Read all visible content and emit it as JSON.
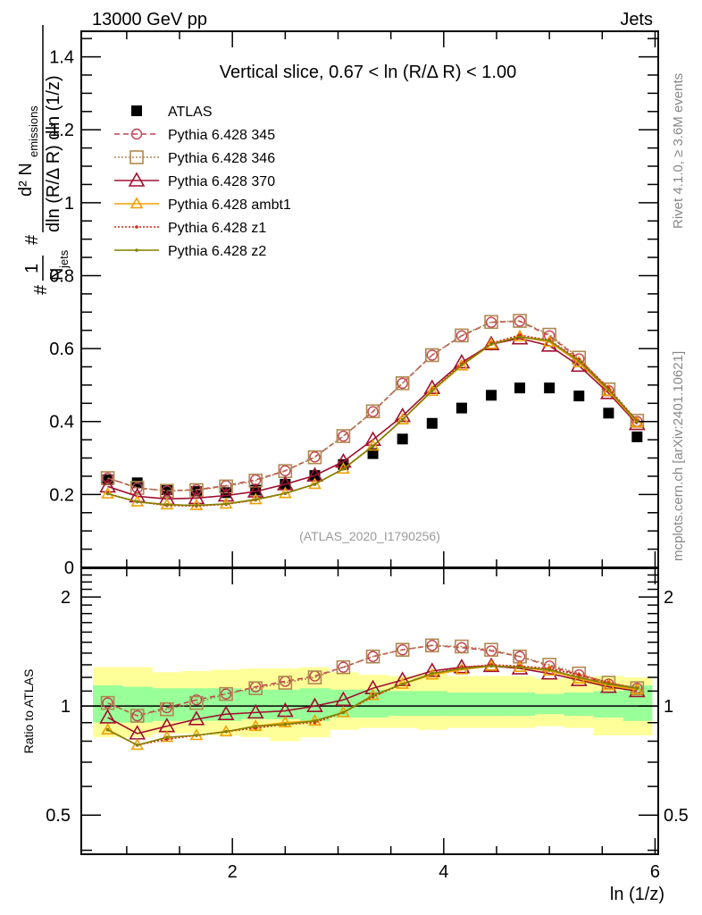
{
  "header": {
    "left": "13000 GeV pp",
    "right": "Jets"
  },
  "side_labels": {
    "rivet": "Rivet 4.1.0, ≥ 3.6M events",
    "mcplots": "mcplots.cern.ch [arXiv:2401.10621]"
  },
  "chart_data": [
    {
      "type": "scatter",
      "title": "Vertical slice, 0.67 < ln (R/Δ R) < 1.00",
      "watermark": "(ATLAS_2020_I1790256)",
      "xlabel": "ln (1/z)",
      "ylabel": "1/N_jets d²N_emissions / dln (R/Δ R) dln (1/z)",
      "ylabel_parts": {
        "num": "d² N",
        "num_sub": "emissions",
        "den": "dln (R/Δ R) dln (1/z)",
        "pre": "1",
        "pre_den": "N",
        "pre_sub": "jets"
      },
      "xlim": [
        0.57,
        6.03
      ],
      "ylim": [
        0,
        1.47
      ],
      "x_ticks": [
        2,
        4,
        6
      ],
      "y_ticks": [
        0,
        0.2,
        0.4,
        0.6,
        0.8,
        1,
        1.2,
        1.4
      ],
      "y_tick_labels": [
        "0",
        "0.2",
        "0.4",
        "0.6",
        "0.8",
        "1",
        "1.2",
        "1.4"
      ],
      "legend_position": "top-left",
      "x": [
        0.82,
        1.1,
        1.38,
        1.66,
        1.94,
        2.22,
        2.5,
        2.78,
        3.05,
        3.33,
        3.61,
        3.89,
        4.17,
        4.45,
        4.72,
        5.0,
        5.28,
        5.56,
        5.83
      ],
      "series": [
        {
          "name": "ATLAS",
          "color": "#000000",
          "marker": "square-filled",
          "line": "none",
          "values": [
            0.24,
            0.232,
            0.213,
            0.208,
            0.205,
            0.212,
            0.228,
            0.252,
            0.282,
            0.312,
            0.352,
            0.395,
            0.437,
            0.472,
            0.492,
            0.492,
            0.47,
            0.423,
            0.358
          ]
        },
        {
          "name": "Pythia 6.428 345",
          "color": "#c04050",
          "marker": "circle-open",
          "line": "dashed",
          "values": [
            0.245,
            0.218,
            0.21,
            0.213,
            0.224,
            0.24,
            0.265,
            0.303,
            0.36,
            0.427,
            0.505,
            0.582,
            0.635,
            0.672,
            0.675,
            0.635,
            0.572,
            0.485,
            0.4
          ]
        },
        {
          "name": "Pythia 6.428 346",
          "color": "#b08850",
          "marker": "square-open",
          "line": "dotted",
          "values": [
            0.245,
            0.218,
            0.21,
            0.212,
            0.222,
            0.238,
            0.264,
            0.302,
            0.36,
            0.428,
            0.505,
            0.582,
            0.636,
            0.673,
            0.676,
            0.638,
            0.575,
            0.488,
            0.402
          ]
        },
        {
          "name": "Pythia 6.428 370",
          "color": "#a01030",
          "marker": "triangle-open",
          "line": "solid",
          "values": [
            0.222,
            0.195,
            0.188,
            0.19,
            0.197,
            0.208,
            0.228,
            0.252,
            0.29,
            0.35,
            0.415,
            0.492,
            0.562,
            0.612,
            0.628,
            0.608,
            0.553,
            0.478,
            0.393
          ]
        },
        {
          "name": "Pythia 6.428 ambt1",
          "color": "#f0a000",
          "marker": "triangle-open-small",
          "line": "solid",
          "values": [
            0.202,
            0.18,
            0.172,
            0.17,
            0.174,
            0.186,
            0.203,
            0.228,
            0.27,
            0.333,
            0.405,
            0.483,
            0.553,
            0.612,
            0.633,
            0.618,
            0.562,
            0.483,
            0.397
          ]
        },
        {
          "name": "Pythia 6.428 z1",
          "color": "#e02010",
          "marker": "dot",
          "line": "dotted",
          "values": [
            0.202,
            0.18,
            0.17,
            0.168,
            0.173,
            0.185,
            0.203,
            0.228,
            0.27,
            0.332,
            0.405,
            0.485,
            0.558,
            0.615,
            0.637,
            0.623,
            0.57,
            0.492,
            0.402
          ]
        },
        {
          "name": "Pythia 6.428 z2",
          "color": "#808000",
          "marker": "dot",
          "line": "solid",
          "values": [
            0.202,
            0.18,
            0.172,
            0.17,
            0.174,
            0.186,
            0.203,
            0.228,
            0.27,
            0.333,
            0.405,
            0.485,
            0.555,
            0.612,
            0.632,
            0.622,
            0.566,
            0.487,
            0.4
          ]
        }
      ]
    },
    {
      "type": "scatter",
      "title": "",
      "ylabel": "Ratio to ATLAS",
      "xlabel": "ln (1/z)",
      "yscale": "log",
      "ylim": [
        0.39,
        2.4
      ],
      "xlim": [
        0.57,
        6.03
      ],
      "y_ticks": [
        0.5,
        1,
        2
      ],
      "y_tick_labels": [
        "0.5",
        "1",
        "2"
      ],
      "x_ticks": [
        2,
        4,
        6
      ],
      "x_tick_labels": [
        "2",
        "4",
        "6"
      ],
      "reference_line": 1,
      "x": [
        0.82,
        1.1,
        1.38,
        1.66,
        1.94,
        2.22,
        2.5,
        2.78,
        3.05,
        3.33,
        3.61,
        3.89,
        4.17,
        4.45,
        4.72,
        5.0,
        5.28,
        5.56,
        5.83
      ],
      "bins": [
        0.68,
        0.96,
        1.24,
        1.52,
        1.8,
        2.08,
        2.36,
        2.64,
        2.92,
        3.19,
        3.47,
        3.75,
        4.03,
        4.31,
        4.59,
        4.86,
        5.14,
        5.42,
        5.7,
        5.97
      ],
      "bands": {
        "stat_color": "#99ff99",
        "total_color": "#ffff99",
        "stat_up": [
          1.14,
          1.13,
          1.12,
          1.12,
          1.12,
          1.11,
          1.11,
          1.12,
          1.11,
          1.11,
          1.1,
          1.1,
          1.09,
          1.09,
          1.09,
          1.08,
          1.09,
          1.1,
          1.14
        ],
        "stat_down": [
          0.9,
          0.9,
          0.91,
          0.91,
          0.91,
          0.92,
          0.92,
          0.91,
          0.93,
          0.93,
          0.94,
          0.94,
          0.94,
          0.94,
          0.94,
          0.95,
          0.94,
          0.93,
          0.91
        ],
        "tot_up": [
          1.28,
          1.28,
          1.24,
          1.25,
          1.26,
          1.27,
          1.27,
          1.28,
          1.24,
          1.22,
          1.21,
          1.23,
          1.21,
          1.21,
          1.21,
          1.19,
          1.2,
          1.21,
          1.2
        ],
        "tot_down": [
          0.82,
          0.82,
          0.84,
          0.84,
          0.83,
          0.82,
          0.8,
          0.82,
          0.86,
          0.87,
          0.87,
          0.86,
          0.87,
          0.87,
          0.87,
          0.88,
          0.87,
          0.83,
          0.83
        ]
      },
      "series": [
        {
          "name": "Pythia 6.428 345",
          "color": "#c04050",
          "marker": "circle-open",
          "line": "dashed",
          "values": [
            1.02,
            0.94,
            0.99,
            1.04,
            1.08,
            1.13,
            1.17,
            1.21,
            1.28,
            1.37,
            1.43,
            1.47,
            1.45,
            1.42,
            1.37,
            1.29,
            1.22,
            1.15,
            1.12
          ]
        },
        {
          "name": "Pythia 6.428 346",
          "color": "#b08850",
          "marker": "square-open",
          "line": "dotted",
          "values": [
            1.02,
            0.94,
            0.98,
            1.02,
            1.08,
            1.12,
            1.16,
            1.2,
            1.28,
            1.37,
            1.43,
            1.47,
            1.46,
            1.43,
            1.37,
            1.3,
            1.23,
            1.16,
            1.12
          ]
        },
        {
          "name": "Pythia 6.428 370",
          "color": "#a01030",
          "marker": "triangle-open",
          "line": "solid",
          "values": [
            0.93,
            0.84,
            0.88,
            0.92,
            0.95,
            0.96,
            0.97,
            1.0,
            1.04,
            1.12,
            1.18,
            1.25,
            1.28,
            1.29,
            1.27,
            1.23,
            1.18,
            1.13,
            1.1
          ]
        },
        {
          "name": "Pythia 6.428 ambt1",
          "color": "#f0a000",
          "marker": "triangle-open-small",
          "line": "solid",
          "values": [
            0.86,
            0.78,
            0.82,
            0.83,
            0.85,
            0.88,
            0.9,
            0.91,
            0.96,
            1.07,
            1.15,
            1.22,
            1.26,
            1.29,
            1.28,
            1.25,
            1.19,
            1.14,
            1.11
          ]
        },
        {
          "name": "Pythia 6.428 z1",
          "color": "#e02010",
          "marker": "dot",
          "line": "dotted",
          "values": [
            0.86,
            0.78,
            0.81,
            0.83,
            0.85,
            0.87,
            0.89,
            0.9,
            0.96,
            1.06,
            1.15,
            1.23,
            1.28,
            1.3,
            1.29,
            1.27,
            1.22,
            1.16,
            1.12
          ]
        },
        {
          "name": "Pythia 6.428 z2",
          "color": "#808000",
          "marker": "dot",
          "line": "solid",
          "values": [
            0.86,
            0.78,
            0.82,
            0.83,
            0.85,
            0.88,
            0.89,
            0.91,
            0.96,
            1.07,
            1.15,
            1.23,
            1.27,
            1.29,
            1.28,
            1.26,
            1.2,
            1.15,
            1.12
          ]
        }
      ]
    }
  ]
}
